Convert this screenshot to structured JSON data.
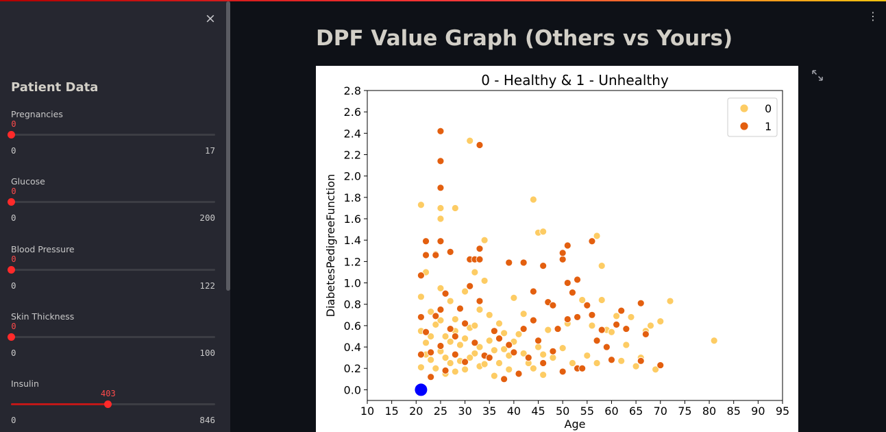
{
  "sidebar": {
    "close_icon": "×",
    "title": "Patient Data",
    "sliders": [
      {
        "label": "Pregnancies",
        "value": "0",
        "min": "0",
        "max": "17",
        "fraction": 0
      },
      {
        "label": "Glucose",
        "value": "0",
        "min": "0",
        "max": "200",
        "fraction": 0
      },
      {
        "label": "Blood Pressure",
        "value": "0",
        "min": "0",
        "max": "122",
        "fraction": 0
      },
      {
        "label": "Skin Thickness",
        "value": "0",
        "min": "0",
        "max": "100",
        "fraction": 0
      },
      {
        "label": "Insulin",
        "value": "403",
        "min": "0",
        "max": "846",
        "fraction": 0.476
      }
    ]
  },
  "main": {
    "title": "DPF Value Graph (Others vs Yours)",
    "menu_icon": "⋮"
  },
  "colors": {
    "class0": "#fdcc64",
    "class1": "#e35f0f",
    "user_point": "#0000ff",
    "slider_accent": "#ff4b4b"
  },
  "chart_data": {
    "type": "scatter",
    "title": "0 - Healthy & 1 - Unhealthy",
    "xlabel": "Age",
    "ylabel": "DiabetesPedigreeFunction",
    "xlim": [
      10,
      95
    ],
    "ylim": [
      -0.1,
      2.8
    ],
    "xticks": [
      "10",
      "15",
      "20",
      "25",
      "30",
      "35",
      "40",
      "45",
      "50",
      "55",
      "60",
      "65",
      "70",
      "75",
      "80",
      "85",
      "90",
      "95"
    ],
    "yticks": [
      "0.0",
      "0.2",
      "0.4",
      "0.6",
      "0.8",
      "1.0",
      "1.2",
      "1.4",
      "1.6",
      "1.8",
      "2.0",
      "2.2",
      "2.4",
      "2.6",
      "2.8"
    ],
    "legend_position": "top-right",
    "legend": [
      "0",
      "1"
    ],
    "series": [
      {
        "name": "0",
        "points": [
          [
            21,
            1.73
          ],
          [
            25,
            1.7
          ],
          [
            25,
            1.6
          ],
          [
            28,
            1.7
          ],
          [
            31,
            2.33
          ],
          [
            44,
            1.78
          ],
          [
            45,
            1.47
          ],
          [
            46,
            1.48
          ],
          [
            57,
            1.44
          ],
          [
            58,
            1.16
          ],
          [
            81,
            0.46
          ],
          [
            72,
            0.83
          ],
          [
            70,
            0.64
          ],
          [
            69,
            0.19
          ],
          [
            66,
            0.3
          ],
          [
            65,
            0.22
          ],
          [
            63,
            0.42
          ],
          [
            62,
            0.27
          ],
          [
            61,
            0.69
          ],
          [
            59,
            0.56
          ],
          [
            58,
            0.84
          ],
          [
            56,
            0.6
          ],
          [
            55,
            0.32
          ],
          [
            54,
            0.84
          ],
          [
            51,
            0.62
          ],
          [
            50,
            0.39
          ],
          [
            48,
            0.3
          ],
          [
            47,
            0.56
          ],
          [
            46,
            0.14
          ],
          [
            45,
            0.4
          ],
          [
            43,
            0.25
          ],
          [
            42,
            0.71
          ],
          [
            41,
            0.52
          ],
          [
            40,
            0.86
          ],
          [
            39,
            0.19
          ],
          [
            38,
            0.38
          ],
          [
            37,
            0.62
          ],
          [
            36,
            0.13
          ],
          [
            35,
            0.46
          ],
          [
            34,
            1.02
          ],
          [
            34,
            1.4
          ],
          [
            33,
            0.22
          ],
          [
            33,
            0.75
          ],
          [
            32,
            0.34
          ],
          [
            32,
            1.1
          ],
          [
            31,
            0.58
          ],
          [
            30,
            0.19
          ],
          [
            30,
            0.92
          ],
          [
            29,
            0.42
          ],
          [
            28,
            0.66
          ],
          [
            28,
            0.17
          ],
          [
            27,
            0.25
          ],
          [
            27,
            0.83
          ],
          [
            26,
            0.5
          ],
          [
            26,
            0.15
          ],
          [
            25,
            0.36
          ],
          [
            25,
            0.95
          ],
          [
            24,
            0.61
          ],
          [
            24,
            1.27
          ],
          [
            23,
            0.28
          ],
          [
            23,
            0.73
          ],
          [
            22,
            0.44
          ],
          [
            22,
            1.1
          ],
          [
            21,
            0.55
          ],
          [
            21,
            0.21
          ],
          [
            21,
            0.87
          ],
          [
            22,
            0.33
          ],
          [
            23,
            0.5
          ],
          [
            24,
            0.2
          ],
          [
            25,
            0.65
          ],
          [
            26,
            0.3
          ],
          [
            27,
            0.45
          ],
          [
            28,
            0.55
          ],
          [
            29,
            0.27
          ],
          [
            30,
            0.48
          ],
          [
            31,
            0.3
          ],
          [
            32,
            0.6
          ],
          [
            33,
            0.4
          ],
          [
            34,
            0.24
          ],
          [
            35,
            0.7
          ],
          [
            36,
            0.37
          ],
          [
            37,
            0.25
          ],
          [
            38,
            0.53
          ],
          [
            39,
            0.32
          ],
          [
            40,
            0.45
          ],
          [
            42,
            0.34
          ],
          [
            44,
            0.2
          ],
          [
            46,
            0.33
          ],
          [
            52,
            0.25
          ],
          [
            57,
            0.25
          ],
          [
            60,
            0.54
          ],
          [
            64,
            0.68
          ],
          [
            67,
            0.55
          ],
          [
            68,
            0.6
          ]
        ]
      },
      {
        "name": "1",
        "points": [
          [
            25,
            2.42
          ],
          [
            25,
            2.14
          ],
          [
            25,
            1.89
          ],
          [
            25,
            1.39
          ],
          [
            27,
            1.29
          ],
          [
            33,
            2.29
          ],
          [
            22,
            1.39
          ],
          [
            22,
            1.26
          ],
          [
            21,
            1.07
          ],
          [
            24,
            1.26
          ],
          [
            31,
            1.22
          ],
          [
            32,
            1.22
          ],
          [
            33,
            1.22
          ],
          [
            33,
            1.32
          ],
          [
            39,
            1.19
          ],
          [
            42,
            1.19
          ],
          [
            46,
            1.16
          ],
          [
            50,
            1.22
          ],
          [
            51,
            1.35
          ],
          [
            56,
            1.39
          ],
          [
            50,
            1.28
          ],
          [
            51,
            1.0
          ],
          [
            53,
            1.03
          ],
          [
            44,
            0.92
          ],
          [
            47,
            0.82
          ],
          [
            48,
            0.79
          ],
          [
            52,
            0.91
          ],
          [
            55,
            0.79
          ],
          [
            53,
            0.68
          ],
          [
            49,
            0.57
          ],
          [
            51,
            0.66
          ],
          [
            56,
            0.7
          ],
          [
            58,
            0.56
          ],
          [
            59,
            0.4
          ],
          [
            61,
            0.61
          ],
          [
            62,
            0.74
          ],
          [
            66,
            0.81
          ],
          [
            67,
            0.52
          ],
          [
            70,
            0.23
          ],
          [
            66,
            0.27
          ],
          [
            63,
            0.57
          ],
          [
            57,
            0.46
          ],
          [
            53,
            0.2
          ],
          [
            50,
            0.17
          ],
          [
            45,
            0.46
          ],
          [
            43,
            0.3
          ],
          [
            41,
            0.15
          ],
          [
            39,
            0.42
          ],
          [
            38,
            0.1
          ],
          [
            36,
            0.55
          ],
          [
            34,
            0.32
          ],
          [
            33,
            0.83
          ],
          [
            31,
            0.97
          ],
          [
            30,
            0.26
          ],
          [
            29,
            0.76
          ],
          [
            28,
            0.33
          ],
          [
            27,
            0.57
          ],
          [
            26,
            0.18
          ],
          [
            25,
            0.41
          ],
          [
            24,
            0.69
          ],
          [
            23,
            0.12
          ],
          [
            22,
            0.54
          ],
          [
            21,
            0.33
          ],
          [
            21,
            0.68
          ],
          [
            23,
            0.35
          ],
          [
            25,
            0.75
          ],
          [
            26,
            0.9
          ],
          [
            28,
            0.5
          ],
          [
            30,
            0.62
          ],
          [
            32,
            0.44
          ],
          [
            35,
            0.3
          ],
          [
            37,
            0.48
          ],
          [
            40,
            0.35
          ],
          [
            42,
            0.57
          ],
          [
            44,
            0.65
          ],
          [
            46,
            0.25
          ],
          [
            48,
            0.36
          ],
          [
            54,
            0.2
          ],
          [
            60,
            0.28
          ]
        ]
      },
      {
        "name": "",
        "points": [
          [
            21,
            0.0
          ]
        ]
      }
    ]
  }
}
